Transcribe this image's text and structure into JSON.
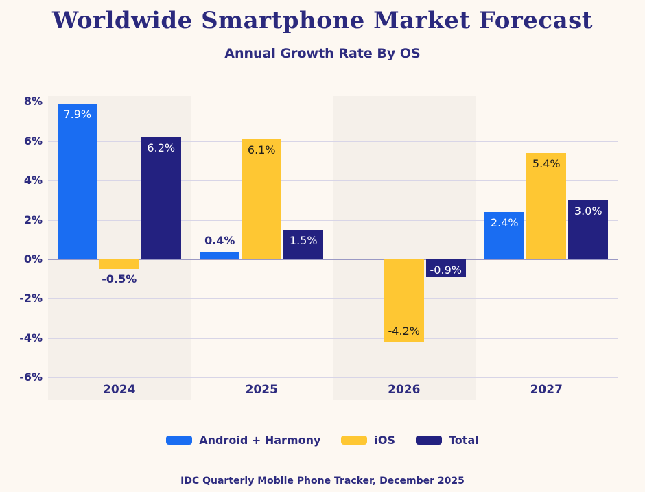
{
  "header": {
    "title": "Worldwide Smartphone Market Forecast",
    "subtitle": "Annual Growth Rate By OS"
  },
  "footer": {
    "source": "IDC Quarterly Mobile Phone Tracker, December 2025"
  },
  "colors": {
    "android": "#1a6df2",
    "ios": "#fec733",
    "total": "#232180",
    "background": "#fdf8f2",
    "band": "#f5f0ea",
    "gridline": "#d8d5e7",
    "zero_line": "#9b99c4",
    "text_navy": "#2d2b7f"
  },
  "chart_data": {
    "type": "bar",
    "title": "Worldwide Smartphone Market Forecast",
    "subtitle": "Annual Growth Rate By OS",
    "categories": [
      "2024",
      "2025",
      "2026",
      "2027"
    ],
    "y_ticks": [
      "8%",
      "6%",
      "4%",
      "2%",
      "0%",
      "-2%",
      "-4%",
      "-6%"
    ],
    "ylim": [
      -6,
      8
    ],
    "unit": "%",
    "grid": "horizontal",
    "legend_position": "bottom",
    "band_columns": [
      0,
      2
    ],
    "series": [
      {
        "name": "Android + Harmony",
        "color": "#1a6df2",
        "values": [
          7.9,
          0.4,
          0.0,
          2.4
        ],
        "labels": [
          "7.9%",
          "0.4%",
          null,
          "2.4%"
        ],
        "label_pos": [
          "inside-top",
          "above",
          null,
          "inside-top"
        ],
        "label_tone": [
          "light",
          "navy",
          null,
          "light"
        ]
      },
      {
        "name": "iOS",
        "color": "#fec733",
        "values": [
          -0.5,
          6.1,
          -4.2,
          5.4
        ],
        "labels": [
          "-0.5%",
          "6.1%",
          "-4.2%",
          "5.4%"
        ],
        "label_pos": [
          "below",
          "inside-top",
          "inside-bottom",
          "inside-top"
        ],
        "label_tone": [
          "navy",
          "dark",
          "dark",
          "dark"
        ]
      },
      {
        "name": "Total",
        "color": "#232180",
        "values": [
          6.2,
          1.5,
          -0.9,
          3.0
        ],
        "labels": [
          "6.2%",
          "1.5%",
          "-0.9%",
          "3.0%"
        ],
        "label_pos": [
          "inside-top",
          "inside-top",
          "inside-top",
          "inside-top"
        ],
        "label_tone": [
          "light",
          "light",
          "light",
          "light"
        ]
      }
    ]
  }
}
